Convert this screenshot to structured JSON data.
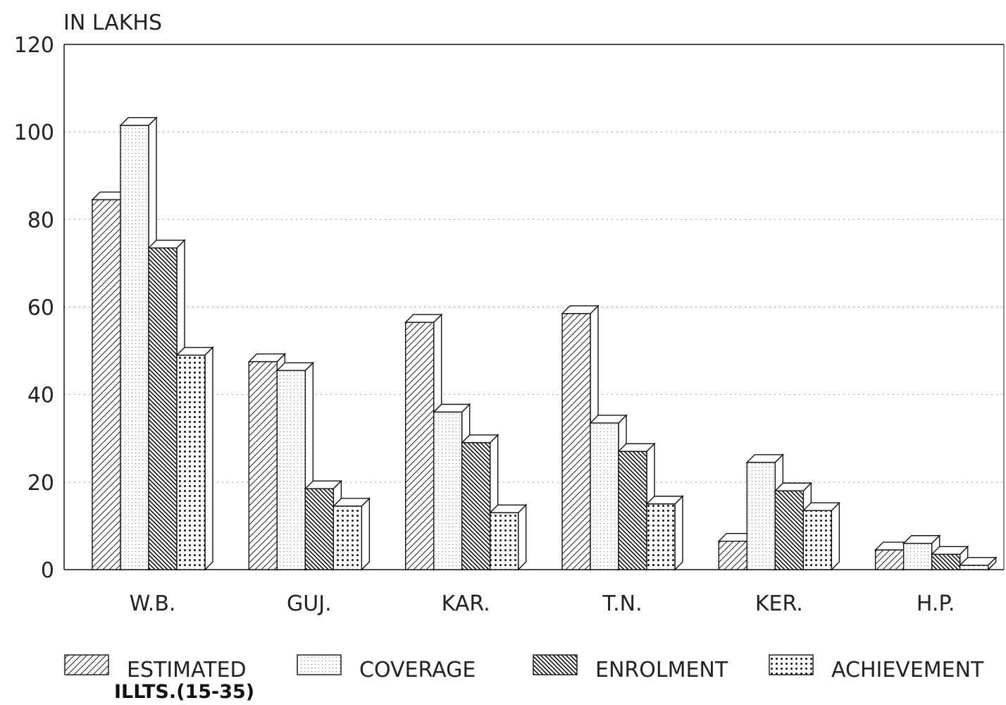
{
  "chart_data": {
    "type": "bar",
    "style": "3d-clustered",
    "unit_label": "IN LAKHS",
    "categories": [
      "W.B.",
      "GUJ.",
      "KAR.",
      "T.N.",
      "KER.",
      "H.P."
    ],
    "series": [
      {
        "name": "ESTIMATED",
        "sub_label": "ILLTS.(15-35)",
        "pattern": "diagonal-forward",
        "values": [
          84.5,
          47.5,
          56.5,
          58.5,
          6.5,
          4.5
        ]
      },
      {
        "name": "COVERAGE",
        "pattern": "fine-dots",
        "values": [
          101.5,
          45.5,
          36,
          33.5,
          24.5,
          6
        ]
      },
      {
        "name": "ENROLMENT",
        "pattern": "diagonal-back-dense",
        "values": [
          73.5,
          18.5,
          29,
          27,
          18,
          3.5
        ]
      },
      {
        "name": "ACHIEVEMENT",
        "pattern": "coarse-dots",
        "values": [
          49,
          14.5,
          13,
          15,
          13.5,
          1
        ]
      }
    ],
    "ylim": [
      0,
      120
    ],
    "yticks": [
      "0",
      "20",
      "40",
      "60",
      "80",
      "100",
      "120"
    ],
    "grid": "dotted-horizontal",
    "legend_position": "bottom"
  }
}
